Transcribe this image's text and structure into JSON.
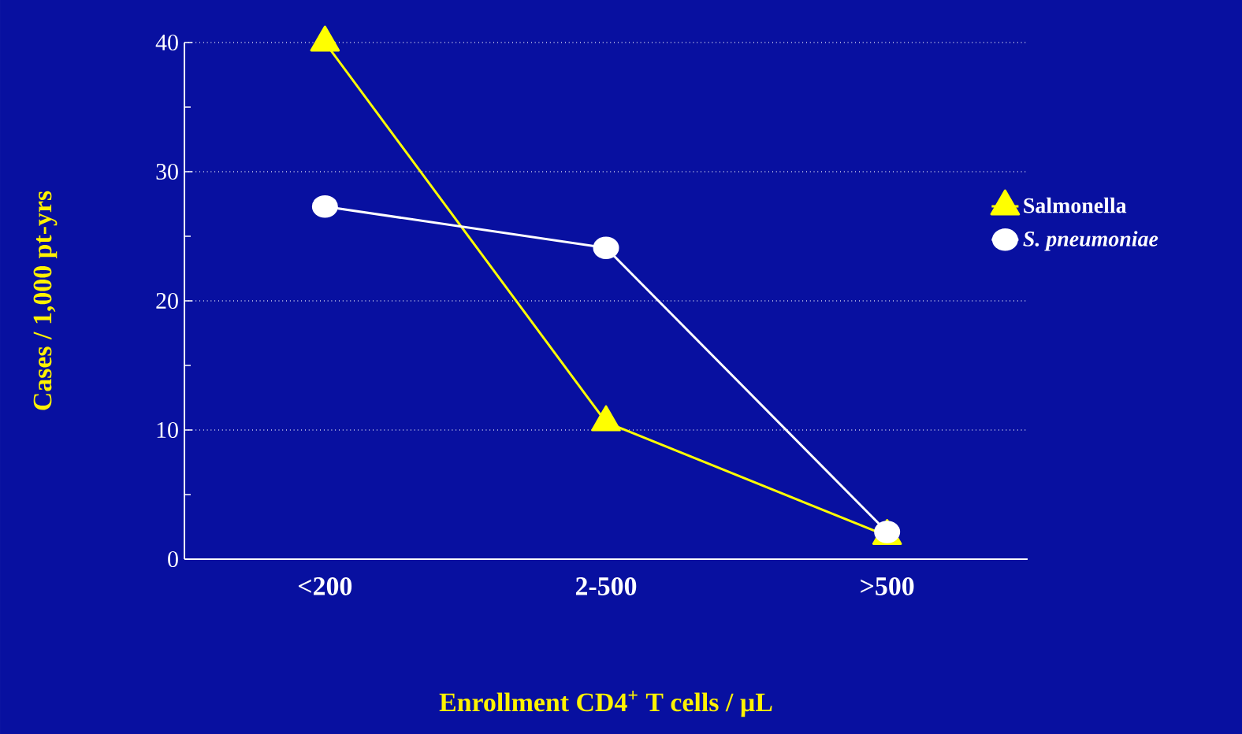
{
  "chart_data": {
    "type": "line",
    "xlabel": "Enrollment CD4$^{+}$ T cells / µL",
    "ylabel": "Cases / 1,000 pt-yrs",
    "categories": [
      "<200",
      "2-500",
      ">500"
    ],
    "series": [
      {
        "name": "Salmonella",
        "color": "#ffff00",
        "marker": "triangle",
        "values": [
          40,
          10.6,
          1.8
        ]
      },
      {
        "name": "S. pneumoniae",
        "color": "#ffffff",
        "marker": "circle",
        "values": [
          27.3,
          24.1,
          2.1
        ]
      }
    ],
    "ylim": [
      0,
      40
    ],
    "yticks": [
      0,
      10,
      20,
      30,
      40
    ],
    "grid": "y",
    "legend": "right",
    "line_style": "solid"
  }
}
